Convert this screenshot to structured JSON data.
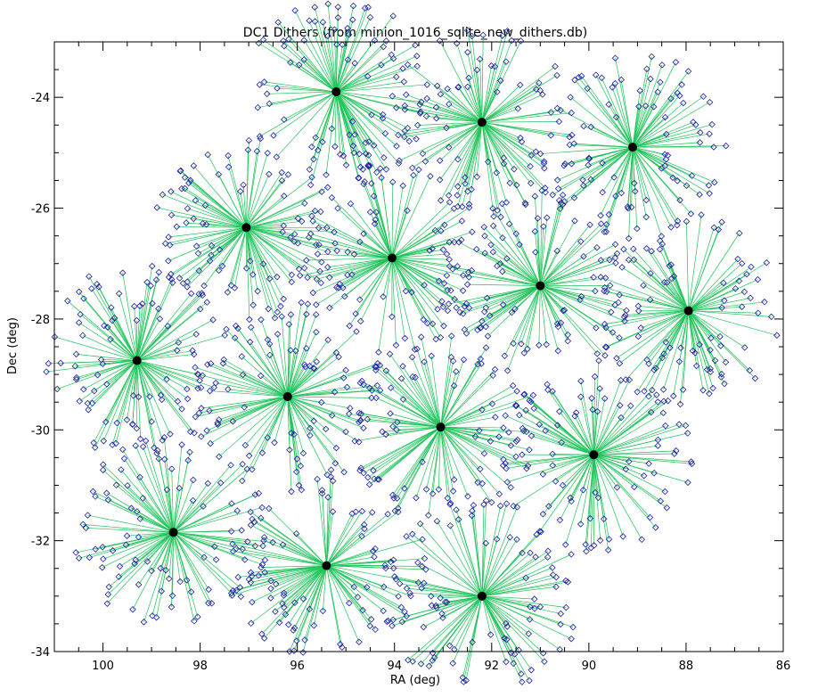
{
  "chart_data": {
    "type": "scatter",
    "title": "DC1 Dithers (from minion_1016_sqlite_new_dithers.db)",
    "xlabel": "RA (deg)",
    "ylabel": "Dec (deg)",
    "xlim": [
      101,
      86
    ],
    "ylim": [
      -34,
      -23
    ],
    "x_ticks": [
      100,
      98,
      96,
      94,
      92,
      90,
      88,
      86
    ],
    "y_ticks": [
      -24,
      -26,
      -28,
      -30,
      -32,
      -34
    ],
    "grid": false,
    "legend": "none",
    "x_reversed": true,
    "series": [
      {
        "role": "field centers",
        "marker": "filled circle",
        "points": [
          {
            "ra": 95.2,
            "dec": -23.9
          },
          {
            "ra": 92.2,
            "dec": -24.45
          },
          {
            "ra": 89.1,
            "dec": -24.9
          },
          {
            "ra": 97.05,
            "dec": -26.35
          },
          {
            "ra": 94.05,
            "dec": -26.9
          },
          {
            "ra": 91.0,
            "dec": -27.4
          },
          {
            "ra": 87.95,
            "dec": -27.85
          },
          {
            "ra": 99.3,
            "dec": -28.75
          },
          {
            "ra": 96.2,
            "dec": -29.4
          },
          {
            "ra": 93.05,
            "dec": -29.95
          },
          {
            "ra": 89.9,
            "dec": -30.45
          },
          {
            "ra": 98.55,
            "dec": -31.85
          },
          {
            "ra": 95.4,
            "dec": -32.45
          },
          {
            "ra": 92.2,
            "dec": -33.0
          }
        ]
      },
      {
        "role": "dithered pointings",
        "marker": "open diamond",
        "per_field": 100,
        "max_offset_deg": 1.75
      }
    ],
    "colors": {
      "center": "#000000",
      "dither": "#1c1ca0",
      "line": "#1fc45a",
      "axis": "#000000"
    }
  }
}
